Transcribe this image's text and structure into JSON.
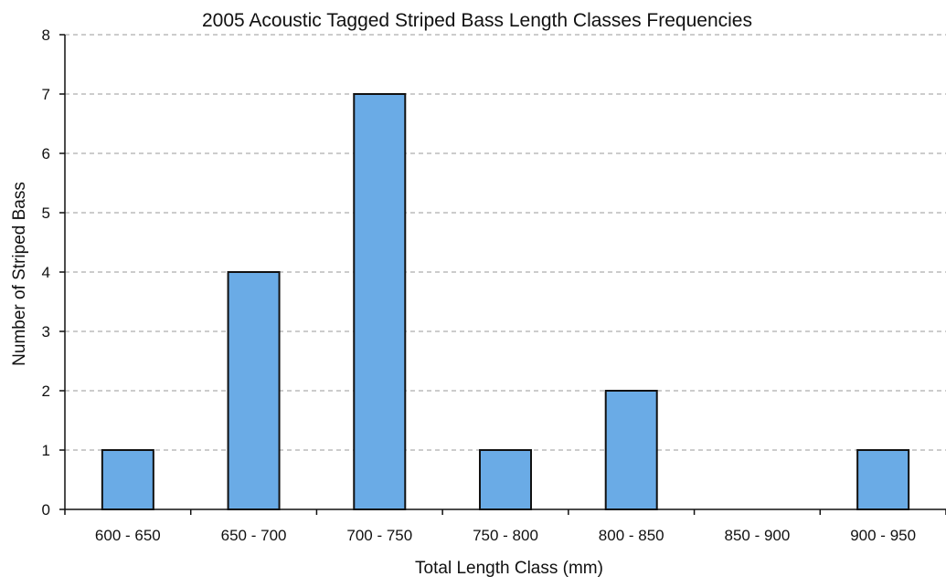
{
  "chart_data": {
    "type": "bar",
    "title": "2005 Acoustic Tagged Striped Bass Length Classes Frequencies",
    "xlabel": "Total Length Class (mm)",
    "ylabel": "Number of Striped Bass",
    "categories": [
      "600 - 650",
      "650 - 700",
      "700 - 750",
      "750 - 800",
      "800 - 850",
      "850 - 900",
      "900 - 950"
    ],
    "values": [
      1,
      4,
      7,
      1,
      2,
      0,
      1
    ],
    "ylim": [
      0,
      8
    ],
    "yticks": [
      "0",
      "1",
      "2",
      "3",
      "4",
      "5",
      "6",
      "7",
      "8"
    ],
    "grid": true,
    "legend": "none",
    "colors": {
      "bar_fill": "#6aabe6",
      "bar_stroke": "#111111",
      "gridline": "#9a9a9a",
      "axis": "#111111"
    }
  }
}
